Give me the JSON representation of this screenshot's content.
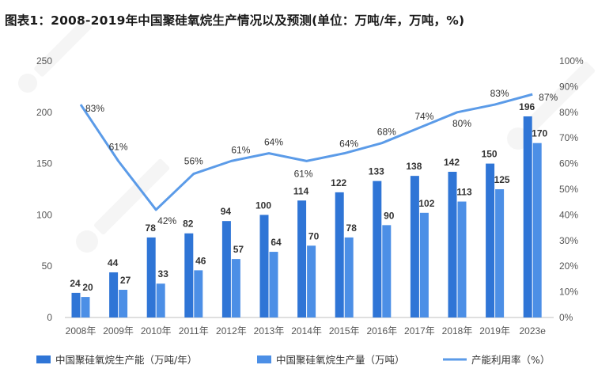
{
  "chart_data": {
    "type": "bar",
    "title": "图表1：2008-2019年中国聚硅氧烷生产情况以及预测(单位：万吨/年，万吨，%)",
    "categories": [
      "2008年",
      "2009年",
      "2010年",
      "2011年",
      "2012年",
      "2013年",
      "2014年",
      "2015年",
      "2016年",
      "2017年",
      "2018年",
      "2019年",
      "2023e"
    ],
    "series": [
      {
        "name": "中国聚硅氧烷生产能（万吨/年）",
        "type": "bar",
        "axis": "left",
        "color": "#2f75d6",
        "values": [
          24,
          44,
          78,
          82,
          94,
          100,
          114,
          122,
          133,
          138,
          142,
          150,
          196
        ]
      },
      {
        "name": "中国聚硅氧烷生产量（万吨）",
        "type": "bar",
        "axis": "left",
        "color": "#4c8fe6",
        "values": [
          20,
          27,
          33,
          46,
          57,
          64,
          70,
          78,
          90,
          102,
          113,
          125,
          170
        ]
      },
      {
        "name": "产能利用率（%）",
        "type": "line",
        "axis": "right",
        "color": "#5b9be8",
        "values": [
          83,
          61,
          42,
          56,
          61,
          64,
          61,
          64,
          68,
          74,
          80,
          83,
          87
        ]
      }
    ],
    "left_axis": {
      "ylim": [
        0,
        250
      ],
      "ticks": [
        "0",
        "50",
        "100",
        "150",
        "200",
        "250"
      ]
    },
    "right_axis": {
      "ylim": [
        0,
        100
      ],
      "ticks": [
        "0%",
        "10%",
        "20%",
        "30%",
        "40%",
        "50%",
        "60%",
        "70%",
        "80%",
        "90%",
        "100%"
      ]
    },
    "grid": false,
    "legend_position": "bottom"
  }
}
